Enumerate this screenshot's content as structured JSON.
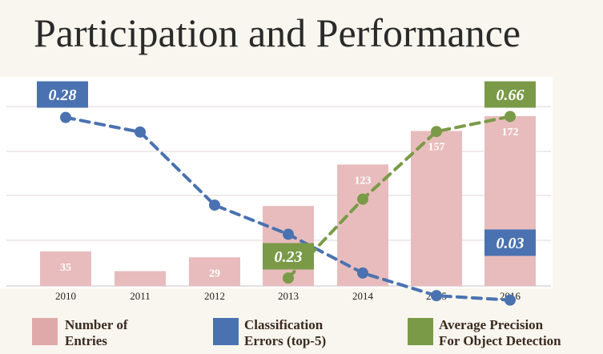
{
  "chart_data": {
    "type": "bar",
    "title": "Participation and Performance",
    "categories": [
      "2010",
      "2011",
      "2012",
      "2013",
      "2014",
      "2015",
      "2016"
    ],
    "series": [
      {
        "name": "Number of Entries",
        "kind": "bar",
        "color": "#e8bcbc",
        "values": [
          35,
          15,
          29,
          81,
          123,
          157,
          172
        ],
        "labels": [
          "35",
          "",
          "29",
          "",
          "123",
          "157",
          "172"
        ]
      },
      {
        "name": "Classification Errors (top-5)",
        "kind": "line",
        "color": "#4a72b0",
        "values": [
          0.28,
          0.26,
          0.16,
          0.12,
          0.067,
          0.036,
          0.03
        ]
      },
      {
        "name": "Average Precision For Object Detection",
        "kind": "line",
        "color": "#7a9a48",
        "values": [
          null,
          null,
          null,
          0.23,
          0.44,
          0.62,
          0.66
        ]
      }
    ],
    "callouts": [
      {
        "series": 1,
        "index": 0,
        "text": "0.28",
        "color": "#4a72b0"
      },
      {
        "series": 1,
        "index": 6,
        "text": "0.03",
        "color": "#4a72b0"
      },
      {
        "series": 2,
        "index": 3,
        "text": "0.23",
        "color": "#7a9a48"
      },
      {
        "series": 2,
        "index": 6,
        "text": "0.66",
        "color": "#7a9a48"
      }
    ],
    "legend": [
      {
        "lines": [
          "Number of",
          "Entries"
        ],
        "color": "#e0a9a9"
      },
      {
        "lines": [
          "Classification",
          "Errors (top-5)"
        ],
        "color": "#4a72b0"
      },
      {
        "lines": [
          "Average Precision",
          "For Object Detection"
        ],
        "color": "#7a9a48"
      }
    ],
    "grid": true,
    "legend_position": "bottom"
  }
}
